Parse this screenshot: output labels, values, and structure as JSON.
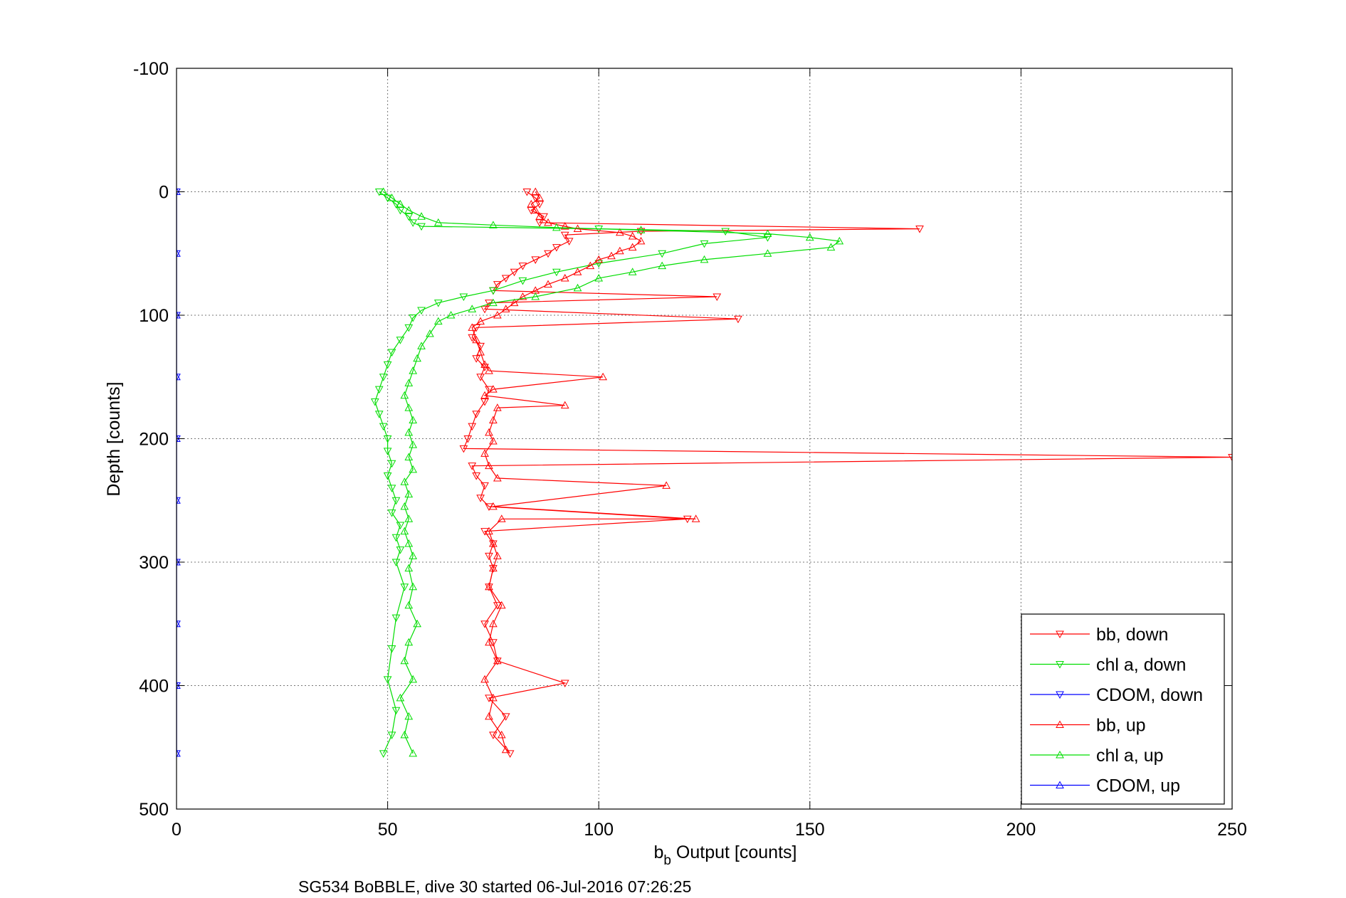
{
  "chart_data": {
    "type": "line",
    "title": "",
    "xlabel_main": "b",
    "xlabel_sub": "b",
    "xlabel_rest": " Output [counts]",
    "ylabel": "Depth [counts]",
    "caption": "SG534 BoBBLE, dive 30 started 06-Jul-2016 07:26:25",
    "xlim": [
      0,
      250
    ],
    "ylim": [
      -100,
      500
    ],
    "y_reversed": true,
    "grid": true,
    "legend_position": "bottom-right",
    "x_ticks": [
      "0",
      "50",
      "100",
      "150",
      "200",
      "250"
    ],
    "y_ticks": [
      "-100",
      "0",
      "100",
      "200",
      "300",
      "400",
      "500"
    ],
    "series": [
      {
        "name": "bb, down",
        "color": "#ff0000",
        "marker": "triangle-down",
        "points": [
          [
            83,
            0
          ],
          [
            85,
            5
          ],
          [
            86,
            10
          ],
          [
            84,
            15
          ],
          [
            87,
            20
          ],
          [
            86,
            25
          ],
          [
            176,
            30
          ],
          [
            110,
            32
          ],
          [
            92,
            35
          ],
          [
            93,
            40
          ],
          [
            90,
            45
          ],
          [
            88,
            50
          ],
          [
            85,
            55
          ],
          [
            82,
            60
          ],
          [
            80,
            65
          ],
          [
            78,
            70
          ],
          [
            76,
            75
          ],
          [
            75,
            80
          ],
          [
            128,
            85
          ],
          [
            74,
            90
          ],
          [
            73,
            95
          ],
          [
            133,
            103
          ],
          [
            71,
            110
          ],
          [
            70,
            118
          ],
          [
            72,
            125
          ],
          [
            71,
            135
          ],
          [
            73,
            142
          ],
          [
            72,
            150
          ],
          [
            74,
            160
          ],
          [
            73,
            170
          ],
          [
            71,
            180
          ],
          [
            70,
            190
          ],
          [
            69,
            200
          ],
          [
            68,
            208
          ],
          [
            250,
            215
          ],
          [
            70,
            222
          ],
          [
            71,
            230
          ],
          [
            73,
            238
          ],
          [
            72,
            248
          ],
          [
            74,
            255
          ],
          [
            121,
            265
          ],
          [
            73,
            275
          ],
          [
            75,
            285
          ],
          [
            74,
            295
          ],
          [
            75,
            305
          ],
          [
            74,
            320
          ],
          [
            76,
            335
          ],
          [
            73,
            350
          ],
          [
            75,
            365
          ],
          [
            76,
            380
          ],
          [
            92,
            398
          ],
          [
            74,
            410
          ],
          [
            78,
            425
          ],
          [
            75,
            440
          ],
          [
            79,
            455
          ]
        ]
      },
      {
        "name": "chl a, down",
        "color": "#00dd00",
        "marker": "triangle-down",
        "points": [
          [
            48,
            0
          ],
          [
            50,
            5
          ],
          [
            52,
            10
          ],
          [
            53,
            15
          ],
          [
            55,
            20
          ],
          [
            56,
            25
          ],
          [
            58,
            28
          ],
          [
            100,
            30
          ],
          [
            130,
            32
          ],
          [
            140,
            37
          ],
          [
            125,
            42
          ],
          [
            115,
            50
          ],
          [
            100,
            58
          ],
          [
            90,
            65
          ],
          [
            82,
            72
          ],
          [
            75,
            80
          ],
          [
            68,
            85
          ],
          [
            62,
            90
          ],
          [
            58,
            96
          ],
          [
            56,
            102
          ],
          [
            55,
            110
          ],
          [
            53,
            120
          ],
          [
            51,
            130
          ],
          [
            50,
            140
          ],
          [
            49,
            150
          ],
          [
            48,
            160
          ],
          [
            47,
            170
          ],
          [
            48,
            180
          ],
          [
            49,
            190
          ],
          [
            50,
            200
          ],
          [
            50,
            210
          ],
          [
            51,
            220
          ],
          [
            50,
            230
          ],
          [
            51,
            240
          ],
          [
            52,
            250
          ],
          [
            51,
            260
          ],
          [
            53,
            270
          ],
          [
            52,
            280
          ],
          [
            53,
            290
          ],
          [
            52,
            300
          ],
          [
            54,
            320
          ],
          [
            52,
            345
          ],
          [
            51,
            370
          ],
          [
            50,
            395
          ],
          [
            52,
            420
          ],
          [
            51,
            440
          ],
          [
            49,
            455
          ]
        ]
      },
      {
        "name": "CDOM, down",
        "color": "#0000ff",
        "marker": "triangle-down",
        "points": [
          [
            0,
            0
          ],
          [
            0,
            50
          ],
          [
            0,
            100
          ],
          [
            0,
            150
          ],
          [
            0,
            200
          ],
          [
            0,
            250
          ],
          [
            0,
            300
          ],
          [
            0,
            350
          ],
          [
            0,
            400
          ],
          [
            0,
            455
          ]
        ]
      },
      {
        "name": "bb, up",
        "color": "#ff0000",
        "marker": "triangle-up",
        "points": [
          [
            78,
            452
          ],
          [
            77,
            440
          ],
          [
            74,
            425
          ],
          [
            75,
            410
          ],
          [
            73,
            395
          ],
          [
            76,
            380
          ],
          [
            74,
            365
          ],
          [
            75,
            350
          ],
          [
            77,
            335
          ],
          [
            74,
            320
          ],
          [
            75,
            305
          ],
          [
            76,
            295
          ],
          [
            75,
            285
          ],
          [
            74,
            275
          ],
          [
            77,
            265
          ],
          [
            123,
            265
          ],
          [
            75,
            255
          ],
          [
            116,
            238
          ],
          [
            76,
            232
          ],
          [
            74,
            222
          ],
          [
            73,
            212
          ],
          [
            75,
            202
          ],
          [
            74,
            195
          ],
          [
            75,
            185
          ],
          [
            76,
            175
          ],
          [
            92,
            173
          ],
          [
            73,
            165
          ],
          [
            75,
            160
          ],
          [
            101,
            150
          ],
          [
            74,
            145
          ],
          [
            73,
            140
          ],
          [
            72,
            130
          ],
          [
            71,
            120
          ],
          [
            70,
            110
          ],
          [
            72,
            105
          ],
          [
            76,
            100
          ],
          [
            78,
            95
          ],
          [
            80,
            90
          ],
          [
            82,
            85
          ],
          [
            85,
            80
          ],
          [
            88,
            75
          ],
          [
            92,
            70
          ],
          [
            95,
            65
          ],
          [
            98,
            60
          ],
          [
            100,
            55
          ],
          [
            103,
            52
          ],
          [
            105,
            48
          ],
          [
            108,
            45
          ],
          [
            110,
            40
          ],
          [
            108,
            36
          ],
          [
            105,
            33
          ],
          [
            95,
            30
          ],
          [
            92,
            28
          ],
          [
            88,
            25
          ],
          [
            86,
            20
          ],
          [
            85,
            15
          ],
          [
            84,
            10
          ],
          [
            86,
            5
          ],
          [
            85,
            0
          ]
        ]
      },
      {
        "name": "chl a, up",
        "color": "#00dd00",
        "marker": "triangle-up",
        "points": [
          [
            56,
            455
          ],
          [
            54,
            440
          ],
          [
            55,
            425
          ],
          [
            53,
            410
          ],
          [
            56,
            395
          ],
          [
            54,
            380
          ],
          [
            55,
            365
          ],
          [
            57,
            350
          ],
          [
            55,
            335
          ],
          [
            56,
            320
          ],
          [
            55,
            305
          ],
          [
            56,
            295
          ],
          [
            55,
            285
          ],
          [
            54,
            275
          ],
          [
            55,
            265
          ],
          [
            54,
            255
          ],
          [
            55,
            245
          ],
          [
            54,
            235
          ],
          [
            56,
            225
          ],
          [
            55,
            215
          ],
          [
            56,
            205
          ],
          [
            55,
            195
          ],
          [
            56,
            185
          ],
          [
            55,
            175
          ],
          [
            54,
            165
          ],
          [
            55,
            155
          ],
          [
            56,
            145
          ],
          [
            57,
            135
          ],
          [
            58,
            125
          ],
          [
            60,
            115
          ],
          [
            62,
            105
          ],
          [
            65,
            100
          ],
          [
            70,
            95
          ],
          [
            75,
            90
          ],
          [
            85,
            85
          ],
          [
            95,
            78
          ],
          [
            100,
            70
          ],
          [
            108,
            65
          ],
          [
            115,
            60
          ],
          [
            125,
            55
          ],
          [
            140,
            50
          ],
          [
            155,
            45
          ],
          [
            157,
            40
          ],
          [
            150,
            37
          ],
          [
            140,
            34
          ],
          [
            110,
            31
          ],
          [
            90,
            29
          ],
          [
            75,
            27
          ],
          [
            62,
            25
          ],
          [
            58,
            20
          ],
          [
            55,
            15
          ],
          [
            53,
            10
          ],
          [
            51,
            5
          ],
          [
            49,
            0
          ]
        ]
      },
      {
        "name": "CDOM, up",
        "color": "#0000ff",
        "marker": "triangle-up",
        "points": [
          [
            0,
            455
          ],
          [
            0,
            400
          ],
          [
            0,
            350
          ],
          [
            0,
            300
          ],
          [
            0,
            250
          ],
          [
            0,
            200
          ],
          [
            0,
            150
          ],
          [
            0,
            100
          ],
          [
            0,
            50
          ],
          [
            0,
            0
          ]
        ]
      }
    ]
  }
}
